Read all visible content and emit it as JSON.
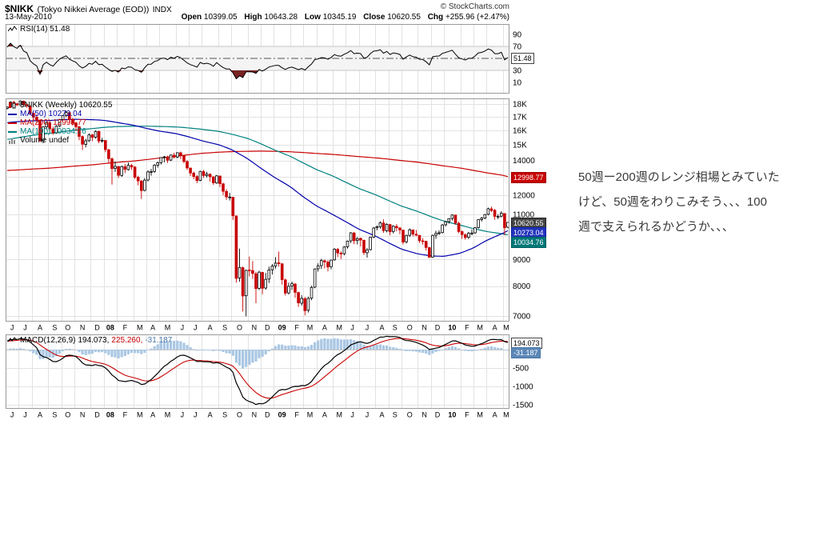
{
  "header": {
    "symbol": "$NIKK",
    "name": "(Tokyo Nikkei Average (EOD))",
    "exchange": "INDX",
    "copyright": "© StockCharts.com",
    "date": "13-May-2010",
    "quote": [
      {
        "label": "Open",
        "value": "10399.05"
      },
      {
        "label": "High",
        "value": "10643.28"
      },
      {
        "label": "Low",
        "value": "10345.19"
      },
      {
        "label": "Close",
        "value": "10620.55"
      },
      {
        "label": "Chg",
        "value": "+255.96 (+2.47%)"
      }
    ]
  },
  "legends": {
    "rsi": "RSI(14) 51.48",
    "main_title": "$NIKK (Weekly) 10620.55",
    "ma50": "MA(50) 10273.04",
    "ma200": "MA(200) 12998.77",
    "ma100": "MA(100) 10034.76",
    "volume": "Volume undef",
    "macd_prefix": "MACD(12,26,9)",
    "macd_value": "194.073,",
    "macd_signal": "225.260,",
    "macd_hist": "-31.187"
  },
  "annotation": {
    "lines": [
      "50週ー200週のレンジ相場とみていた",
      "けど、50週をわりこみそう、、、100",
      "週で支えられるかどうか、、、"
    ]
  },
  "chart_data": {
    "type": "candlestick",
    "symbol": "$NIKK",
    "timeframe": "weekly",
    "indicators": [
      "RSI(14)",
      "MA(50)",
      "MA(100)",
      "MA(200)",
      "MACD(12,26,9)"
    ],
    "y_axis_main": {
      "scale": "log",
      "min": 6826,
      "max": 18450
    },
    "rsi_axis": [
      {
        "v": 90,
        "t": "90"
      },
      {
        "v": 70,
        "t": "70"
      },
      {
        "v": 30,
        "t": "30"
      },
      {
        "v": 10,
        "t": "10"
      }
    ],
    "main_axis": [
      {
        "v": 18000,
        "t": "18K"
      },
      {
        "v": 17000,
        "t": "17K"
      },
      {
        "v": 16000,
        "t": "16K"
      },
      {
        "v": 15000,
        "t": "15K"
      },
      {
        "v": 14000,
        "t": "14000"
      },
      {
        "v": 12000,
        "t": "12000"
      },
      {
        "v": 11000,
        "t": "11000"
      },
      {
        "v": 10000,
        "t": "10000"
      },
      {
        "v": 9000,
        "t": "9000"
      },
      {
        "v": 8000,
        "t": "8000"
      },
      {
        "v": 7000,
        "t": "7000"
      }
    ],
    "macd_axis": [
      {
        "v": -500,
        "t": "-500"
      },
      {
        "v": -1000,
        "t": "-1000"
      },
      {
        "v": -1500,
        "t": "-1500"
      }
    ],
    "main_grid": [
      18000,
      17000,
      16000,
      15000,
      14000,
      13000,
      12000,
      11000,
      10000,
      9000,
      8000,
      7000
    ],
    "macd_grid": [
      0,
      -500,
      -1000,
      -1500
    ],
    "rsi_levels": {
      "overbought": 70,
      "oversold": 30,
      "midline": 50
    },
    "tags": {
      "rsi": [
        {
          "t": "51.48",
          "v": 51.48,
          "bg": "#ffffff",
          "fg": "#000000",
          "bd": "#444444"
        }
      ],
      "main": [
        {
          "t": "12998.77",
          "v": 12998.77,
          "bg": "#c80000",
          "fg": "#ffffff",
          "bd": "#a00000"
        },
        {
          "t": "10620.55",
          "v": 10620.55,
          "bg": "#444444",
          "fg": "#ffffff",
          "bd": "#222222"
        },
        {
          "t": "10273.04",
          "v": 10273.04,
          "bg": "#2233bb",
          "fg": "#ffffff",
          "bd": "#1122aa"
        },
        {
          "t": "10034.76",
          "v": 10034.76,
          "bg": "#007878",
          "fg": "#ffffff",
          "bd": "#006060"
        }
      ],
      "macd": [
        {
          "t": "194.073",
          "v": 194.073,
          "bg": "#ffffff",
          "fg": "#000000",
          "bd": "#444444"
        },
        {
          "t": "-31.187",
          "v": -31.187,
          "bg": "#5b87b7",
          "fg": "#ffffff",
          "bd": "#4a76a6"
        }
      ]
    },
    "colors": {
      "grid": "#e2e2e2",
      "grid2": "#c6c6c6",
      "border": "#999999",
      "down": "#c80000",
      "up_fill": "#ffffff",
      "wick_up": "#000000",
      "ma50": "#0000aa",
      "ma200": "#c80000",
      "ma100": "#008080",
      "hist": "#a9c7e4",
      "signal": "#c80000",
      "macd_line": "#000000",
      "rsi_band": "#f4f4f4",
      "rsi_fill": "#7a2222",
      "dashline": "#555555"
    },
    "months": [
      {
        "l": "J",
        "w": 4
      },
      {
        "l": "J",
        "w": 4
      },
      {
        "l": "A",
        "w": 5
      },
      {
        "l": "S",
        "w": 4
      },
      {
        "l": "O",
        "w": 4
      },
      {
        "l": "N",
        "w": 5
      },
      {
        "l": "D",
        "w": 4
      },
      {
        "l": "08",
        "w": 4
      },
      {
        "l": "F",
        "w": 5
      },
      {
        "l": "M",
        "w": 4
      },
      {
        "l": "A",
        "w": 4
      },
      {
        "l": "M",
        "w": 5
      },
      {
        "l": "J",
        "w": 4
      },
      {
        "l": "J",
        "w": 4
      },
      {
        "l": "A",
        "w": 5
      },
      {
        "l": "S",
        "w": 4
      },
      {
        "l": "O",
        "w": 5
      },
      {
        "l": "N",
        "w": 4
      },
      {
        "l": "D",
        "w": 4
      },
      {
        "l": "09",
        "w": 5
      },
      {
        "l": "F",
        "w": 4
      },
      {
        "l": "M",
        "w": 4
      },
      {
        "l": "A",
        "w": 5
      },
      {
        "l": "M",
        "w": 4
      },
      {
        "l": "J",
        "w": 4
      },
      {
        "l": "J",
        "w": 5
      },
      {
        "l": "A",
        "w": 4
      },
      {
        "l": "S",
        "w": 4
      },
      {
        "l": "O",
        "w": 5
      },
      {
        "l": "N",
        "w": 4
      },
      {
        "l": "D",
        "w": 4
      },
      {
        "l": "10",
        "w": 5
      },
      {
        "l": "F",
        "w": 4
      },
      {
        "l": "M",
        "w": 4
      },
      {
        "l": "A",
        "w": 5
      },
      {
        "l": "M",
        "w": 2
      }
    ],
    "pre_closes": [
      16550,
      16700,
      16500,
      16580,
      16800,
      16900,
      16750,
      16850,
      17000,
      17100,
      16950,
      17150,
      17300,
      17450,
      17400,
      17250,
      17350,
      17500,
      17620,
      17580,
      17450,
      17550,
      17680,
      17600,
      17650,
      17600
    ],
    "ma50": [
      16550,
      16650,
      16700,
      16720,
      16780,
      16820,
      16790,
      16740,
      16580,
      16380,
      16150,
      15950,
      15780,
      15550,
      15280,
      15020,
      14700,
      14100,
      13520,
      13000,
      12450,
      11900,
      11430,
      11000,
      10650,
      10300,
      10000,
      9700,
      9430,
      9230,
      9150,
      9130,
      9260,
      9480,
      9800,
      10120,
      10273
    ],
    "ma200": [
      13380,
      13420,
      13470,
      13520,
      13580,
      13650,
      13720,
      13800,
      13880,
      13960,
      14050,
      14150,
      14260,
      14360,
      14450,
      14520,
      14560,
      14580,
      14590,
      14580,
      14550,
      14500,
      14440,
      14380,
      14310,
      14240,
      14160,
      14080,
      13990,
      13890,
      13780,
      13660,
      13530,
      13390,
      13250,
      13100,
      12999
    ],
    "ma100": [
      15350,
      15500,
      15650,
      15780,
      15900,
      16020,
      16120,
      16220,
      16280,
      16300,
      16310,
      16290,
      16250,
      16180,
      16080,
      15940,
      15740,
      15440,
      15080,
      14680,
      14260,
      13840,
      13440,
      13060,
      12700,
      12350,
      12020,
      11710,
      11420,
      11150,
      10900,
      10680,
      10490,
      10330,
      10200,
      10090,
      10035
    ],
    "weeks": [
      [
        17650,
        17830,
        17560,
        17750
      ],
      [
        17760,
        18220,
        17700,
        18150
      ],
      [
        18140,
        18260,
        17890,
        18000
      ],
      [
        18010,
        18100,
        17830,
        17930
      ],
      [
        17940,
        18300,
        17880,
        18240
      ],
      [
        18230,
        18280,
        17820,
        17950
      ],
      [
        17940,
        18020,
        17700,
        17850
      ],
      [
        17840,
        17890,
        17140,
        17280
      ],
      [
        17270,
        17320,
        16750,
        16980
      ],
      [
        16970,
        17170,
        16530,
        16760
      ],
      [
        16750,
        16800,
        15260,
        15270
      ],
      [
        15280,
        16300,
        15110,
        16250
      ],
      [
        16260,
        16650,
        16070,
        16570
      ],
      [
        16560,
        16600,
        15870,
        16120
      ],
      [
        16110,
        16270,
        15690,
        15820
      ],
      [
        15830,
        16380,
        15760,
        16310
      ],
      [
        16320,
        16850,
        16250,
        16790
      ],
      [
        16800,
        17120,
        16700,
        17090
      ],
      [
        17100,
        17460,
        16980,
        17330
      ],
      [
        17320,
        17380,
        16620,
        16810
      ],
      [
        16820,
        16910,
        16360,
        16530
      ],
      [
        16540,
        16620,
        15970,
        16270
      ],
      [
        16260,
        16310,
        15310,
        15580
      ],
      [
        15570,
        15640,
        14670,
        15050
      ],
      [
        15040,
        15420,
        14840,
        15280
      ],
      [
        15290,
        15800,
        15190,
        15680
      ],
      [
        15690,
        15740,
        15250,
        15510
      ],
      [
        15520,
        16010,
        15430,
        15930
      ],
      [
        15920,
        15990,
        15110,
        15260
      ],
      [
        15270,
        15480,
        15150,
        15310
      ],
      [
        15300,
        15320,
        14520,
        14690
      ],
      [
        14680,
        14740,
        13830,
        14110
      ],
      [
        14100,
        14180,
        12570,
        13500
      ],
      [
        13510,
        13920,
        13300,
        13630
      ],
      [
        13620,
        13660,
        12950,
        13100
      ],
      [
        13090,
        13680,
        13010,
        13620
      ],
      [
        13610,
        13780,
        13230,
        13450
      ],
      [
        13440,
        13870,
        13380,
        13700
      ],
      [
        13690,
        13780,
        13420,
        13600
      ],
      [
        13590,
        13650,
        12890,
        12990
      ],
      [
        12980,
        13080,
        12530,
        12780
      ],
      [
        12770,
        12830,
        11790,
        12240
      ],
      [
        12250,
        12940,
        12190,
        12820
      ],
      [
        12830,
        13390,
        12750,
        13300
      ],
      [
        13310,
        13480,
        13080,
        13320
      ],
      [
        13330,
        13770,
        13240,
        13700
      ],
      [
        13710,
        13920,
        13560,
        13850
      ],
      [
        13860,
        14200,
        13750,
        14180
      ],
      [
        14190,
        14290,
        13880,
        14220
      ],
      [
        14210,
        14300,
        13840,
        14010
      ],
      [
        14020,
        14370,
        13960,
        14340
      ],
      [
        14330,
        14490,
        14110,
        14210
      ],
      [
        14220,
        14520,
        14130,
        14490
      ],
      [
        14480,
        14560,
        14080,
        14300
      ],
      [
        14290,
        14340,
        13820,
        13940
      ],
      [
        13930,
        14020,
        13420,
        13540
      ],
      [
        13530,
        13560,
        13060,
        13240
      ],
      [
        13230,
        13320,
        12870,
        13040
      ],
      [
        13030,
        13120,
        12650,
        12800
      ],
      [
        12810,
        13370,
        12760,
        13330
      ],
      [
        13320,
        13420,
        12950,
        13090
      ],
      [
        13080,
        13310,
        12970,
        13170
      ],
      [
        13160,
        13220,
        12740,
        13020
      ],
      [
        13010,
        13050,
        12550,
        12670
      ],
      [
        12660,
        13120,
        12610,
        13070
      ],
      [
        13060,
        13070,
        12430,
        12620
      ],
      [
        12610,
        12670,
        11990,
        12200
      ],
      [
        12190,
        12320,
        11740,
        11900
      ],
      [
        11890,
        12120,
        11710,
        11890
      ],
      [
        11880,
        11900,
        10740,
        10940
      ],
      [
        10930,
        10960,
        8120,
        8280
      ],
      [
        8290,
        9450,
        8150,
        8690
      ],
      [
        8680,
        8720,
        7140,
        7650
      ],
      [
        7660,
        8600,
        6990,
        8580
      ],
      [
        8590,
        9120,
        8350,
        8580
      ],
      [
        8570,
        8940,
        8260,
        8460
      ],
      [
        8450,
        8520,
        7410,
        7910
      ],
      [
        7920,
        8560,
        7860,
        8510
      ],
      [
        8500,
        8520,
        7710,
        7920
      ],
      [
        7930,
        8480,
        7870,
        8240
      ],
      [
        8250,
        8720,
        8110,
        8590
      ],
      [
        8600,
        8820,
        8420,
        8740
      ],
      [
        8750,
        9100,
        8640,
        8860
      ],
      [
        8870,
        9330,
        8720,
        8840
      ],
      [
        8830,
        8860,
        8050,
        8230
      ],
      [
        8220,
        8270,
        7670,
        7750
      ],
      [
        7760,
        8120,
        7700,
        7990
      ],
      [
        8000,
        8160,
        7860,
        8080
      ],
      [
        8070,
        8110,
        7590,
        7780
      ],
      [
        7770,
        7800,
        7290,
        7420
      ],
      [
        7410,
        7680,
        7330,
        7570
      ],
      [
        7560,
        7620,
        7020,
        7170
      ],
      [
        7180,
        7630,
        7110,
        7570
      ],
      [
        7580,
        8010,
        7510,
        7950
      ],
      [
        7960,
        8650,
        7920,
        8630
      ],
      [
        8640,
        8850,
        8530,
        8750
      ],
      [
        8760,
        9030,
        8630,
        8960
      ],
      [
        8950,
        9000,
        8650,
        8910
      ],
      [
        8900,
        8970,
        8540,
        8710
      ],
      [
        8720,
        9000,
        8620,
        8980
      ],
      [
        8990,
        9470,
        8950,
        9430
      ],
      [
        9420,
        9480,
        9100,
        9270
      ],
      [
        9260,
        9350,
        9020,
        9230
      ],
      [
        9240,
        9550,
        9170,
        9520
      ],
      [
        9530,
        9800,
        9450,
        9770
      ],
      [
        9780,
        10170,
        9690,
        10140
      ],
      [
        10130,
        10180,
        9640,
        9790
      ],
      [
        9800,
        9950,
        9630,
        9880
      ],
      [
        9890,
        9930,
        9540,
        9820
      ],
      [
        9810,
        9830,
        9190,
        9290
      ],
      [
        9280,
        9480,
        9080,
        9400
      ],
      [
        9410,
        9960,
        9370,
        9940
      ],
      [
        9950,
        10400,
        9900,
        10360
      ],
      [
        10370,
        10480,
        10250,
        10410
      ],
      [
        10420,
        10670,
        10330,
        10600
      ],
      [
        10590,
        10770,
        10140,
        10240
      ],
      [
        10230,
        10580,
        10160,
        10530
      ],
      [
        10520,
        10550,
        10030,
        10190
      ],
      [
        10200,
        10490,
        10110,
        10440
      ],
      [
        10430,
        10540,
        10210,
        10370
      ],
      [
        10360,
        10400,
        10070,
        10270
      ],
      [
        10260,
        10270,
        9630,
        9730
      ],
      [
        9740,
        10060,
        9670,
        10020
      ],
      [
        10030,
        10340,
        9950,
        10280
      ],
      [
        10270,
        10290,
        9980,
        10080
      ],
      [
        10070,
        10270,
        9990,
        10030
      ],
      [
        10020,
        10040,
        9690,
        9790
      ],
      [
        9780,
        9900,
        9620,
        9770
      ],
      [
        9760,
        9790,
        9370,
        9500
      ],
      [
        9490,
        9530,
        9080,
        9090
      ],
      [
        9100,
        10060,
        9070,
        10020
      ],
      [
        10030,
        10230,
        9870,
        10110
      ],
      [
        10120,
        10250,
        10040,
        10140
      ],
      [
        10150,
        10550,
        10110,
        10500
      ],
      [
        10510,
        10700,
        10430,
        10650
      ],
      [
        10660,
        10820,
        10560,
        10800
      ],
      [
        10810,
        11000,
        10710,
        10980
      ],
      [
        10970,
        10990,
        10510,
        10590
      ],
      [
        10580,
        10650,
        10120,
        10200
      ],
      [
        10190,
        10250,
        9870,
        10060
      ],
      [
        10050,
        10110,
        9830,
        9930
      ],
      [
        9940,
        10180,
        9860,
        10120
      ],
      [
        10130,
        10290,
        10030,
        10130
      ],
      [
        10140,
        10410,
        10090,
        10370
      ],
      [
        10380,
        10780,
        10330,
        10750
      ],
      [
        10760,
        10890,
        10660,
        10820
      ],
      [
        10830,
        11030,
        10770,
        11000
      ],
      [
        11010,
        11340,
        10960,
        11290
      ],
      [
        11280,
        11390,
        11120,
        11200
      ],
      [
        11210,
        11280,
        10750,
        10910
      ],
      [
        10900,
        11010,
        10780,
        10910
      ],
      [
        10920,
        11160,
        10860,
        11060
      ],
      [
        11050,
        11060,
        10030,
        10370
      ],
      [
        10400,
        10645,
        10345,
        10620
      ]
    ]
  }
}
